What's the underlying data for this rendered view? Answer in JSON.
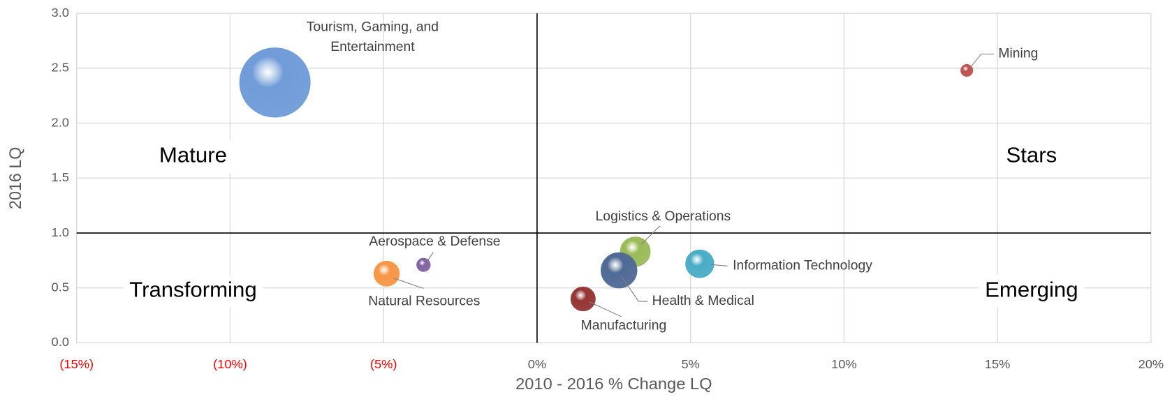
{
  "chart_data": {
    "type": "bubble",
    "x_label": "2010 - 2016 % Change LQ",
    "y_label": "2016 LQ",
    "xlim": [
      -15,
      20
    ],
    "ylim": [
      0,
      3
    ],
    "xticks": [
      {
        "value": -15,
        "label": "(15%)"
      },
      {
        "value": -10,
        "label": "(10%)"
      },
      {
        "value": -5,
        "label": "(5%)"
      },
      {
        "value": 0,
        "label": "0%"
      },
      {
        "value": 5,
        "label": "5%"
      },
      {
        "value": 10,
        "label": "10%"
      },
      {
        "value": 15,
        "label": "15%"
      },
      {
        "value": 20,
        "label": "20%"
      }
    ],
    "yticks": [
      {
        "value": 0,
        "label": "0.0"
      },
      0.5,
      {
        "value": 1,
        "label": "1.0"
      },
      1.5,
      {
        "value": 2,
        "label": "2.0"
      },
      2.5,
      {
        "value": 3,
        "label": "3.0"
      }
    ],
    "grid": true,
    "negative_tick_color": "#ff0000",
    "quadrant_x": 0,
    "quadrant_y": 1,
    "quadrant_labels": [
      "Mature",
      "Stars",
      "Transforming",
      "Emerging"
    ],
    "points": [
      "Tourism, Gaming, and Entertainment",
      "Mining",
      "Aerospace & Defense",
      "Natural Resources",
      "Logistics & Operations",
      "Health & Medical",
      "Information Technology",
      "Manufacturing"
    ],
    "x": [
      -8.54,
      14.0,
      -3.7,
      -4.9,
      3.2,
      2.67,
      5.3,
      1.5
    ],
    "y": [
      2.37,
      2.48,
      0.71,
      0.63,
      0.83,
      0.66,
      0.72,
      0.4
    ],
    "sizes": [
      100,
      2.9,
      3.7,
      13,
      18,
      26,
      16,
      12
    ],
    "colors": [
      "#6f9bd8",
      "#c0504d",
      "#8064a2",
      "#f79646",
      "#9bbb59",
      "#4f6a96",
      "#4bacc6",
      "#943634"
    ]
  }
}
